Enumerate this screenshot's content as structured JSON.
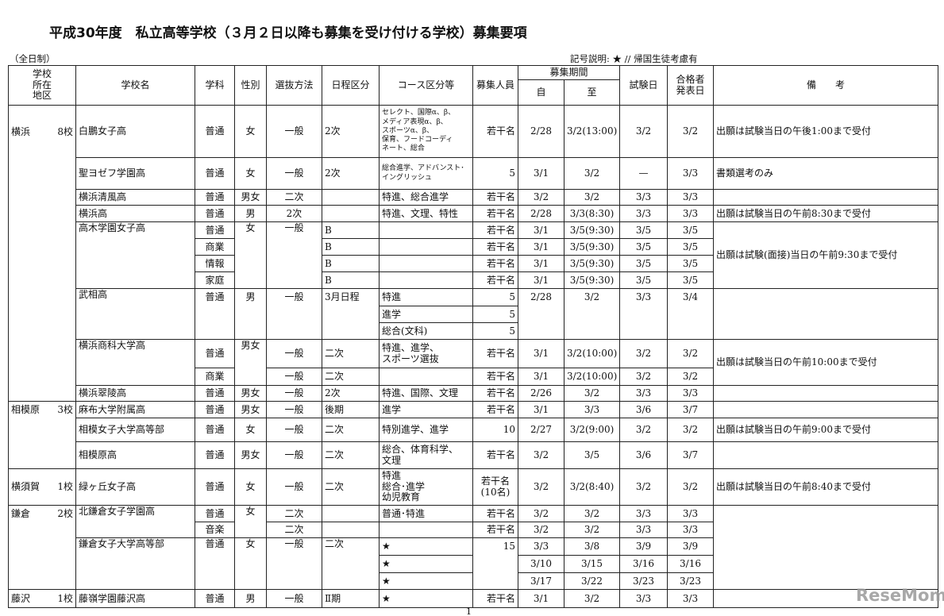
{
  "title": "平成30年度　私立高等学校（３月２日以降も募集を受け付ける学校）募集要項",
  "subtitle": "（全日制）",
  "legend": "記号説明:  ★ // 帰国生徒考慮有",
  "headers": {
    "region": "学校\n所在\n地区",
    "school": "学校名",
    "dept": "学科",
    "gender": "性別",
    "method": "選抜方法",
    "schedule": "日程区分",
    "course": "コース区分等",
    "capacity": "募集人員",
    "period": "募集期間",
    "from": "自",
    "to": "至",
    "exam": "試験日",
    "announce": "合格者\n発表日",
    "note": "備　　考"
  },
  "regions": [
    {
      "name": "横浜",
      "count": "8校"
    },
    {
      "name": "相模原",
      "count": "3校"
    },
    {
      "name": "横須賀",
      "count": "1校"
    },
    {
      "name": "鎌倉",
      "count": "2校"
    },
    {
      "name": "藤沢",
      "count": "1校"
    }
  ],
  "rows": [
    {
      "school": "白鵬女子高",
      "dept": "普通",
      "gender": "女",
      "method": "一般",
      "schedule": "2次",
      "course": "セレクト、国際α、β、\nメディア表現α、β、\nスポーツα、β、\n保育、フードコーディ\nネート、総合",
      "capacity": "若干名",
      "from": "2/28",
      "to": "3/2(13:00)",
      "exam": "3/2",
      "announce": "3/2",
      "note": "出願は試験当日の午後1:00まで受付"
    },
    {
      "school": "聖ヨゼフ学園高",
      "dept": "普通",
      "gender": "女",
      "method": "一般",
      "schedule": "2次",
      "course": "総合進学、アドバンスト･\nイングリッシュ",
      "capacity": "5",
      "from": "3/1",
      "to": "3/2",
      "exam": "—",
      "announce": "3/3",
      "note": "書類選考のみ"
    },
    {
      "school": "横浜清風高",
      "dept": "普通",
      "gender": "男女",
      "method": "二次",
      "schedule": "",
      "course": "特進、総合進学",
      "capacity": "若干名",
      "from": "3/2",
      "to": "3/2",
      "exam": "3/3",
      "announce": "3/3",
      "note": ""
    },
    {
      "school": "横浜高",
      "dept": "普通",
      "gender": "男",
      "method": "2次",
      "schedule": "",
      "course": "特進、文理、特性",
      "capacity": "若干名",
      "from": "2/28",
      "to": "3/3(8:30)",
      "exam": "3/3",
      "announce": "3/3",
      "note": "出願は試験当日の午前8:30まで受付"
    },
    {
      "school": "高木学園女子高",
      "dept": "普通",
      "gender": "女",
      "method": "一般",
      "schedule": "B",
      "course": "",
      "capacity": "若干名",
      "from": "3/1",
      "to": "3/5(9:30)",
      "exam": "3/5",
      "announce": "3/5",
      "note": "出願は試験(面接)当日の午前9:30まで受付"
    },
    {
      "dept": "商業",
      "schedule": "B",
      "course": "",
      "capacity": "若干名",
      "from": "3/1",
      "to": "3/5(9:30)",
      "exam": "3/5",
      "announce": "3/5"
    },
    {
      "dept": "情報",
      "schedule": "B",
      "course": "",
      "capacity": "若干名",
      "from": "3/1",
      "to": "3/5(9:30)",
      "exam": "3/5",
      "announce": "3/5"
    },
    {
      "dept": "家庭",
      "schedule": "B",
      "course": "",
      "capacity": "若干名",
      "from": "3/1",
      "to": "3/5(9:30)",
      "exam": "3/5",
      "announce": "3/5"
    },
    {
      "school": "武相高",
      "dept": "普通",
      "gender": "男",
      "method": "一般",
      "schedule": "3月日程",
      "course": "特進",
      "capacity": "5",
      "from": "2/28",
      "to": "3/2",
      "exam": "3/3",
      "announce": "3/4",
      "note": ""
    },
    {
      "course": "進学",
      "capacity": "5"
    },
    {
      "course": "総合(文科)",
      "capacity": "5"
    },
    {
      "school": "横浜商科大学高",
      "dept": "普通",
      "gender": "男女",
      "method": "一般",
      "schedule": "二次",
      "course": "特進、進学、\nスポーツ選抜",
      "capacity": "若干名",
      "from": "3/1",
      "to": "3/2(10:00)",
      "exam": "3/2",
      "announce": "3/2",
      "note": "出願は試験当日の午前10:00まで受付"
    },
    {
      "dept": "商業",
      "method": "一般",
      "schedule": "二次",
      "course": "",
      "capacity": "若干名",
      "from": "3/1",
      "to": "3/2(10:00)",
      "exam": "3/2",
      "announce": "3/2"
    },
    {
      "school": "横浜翠陵高",
      "dept": "普通",
      "gender": "男女",
      "method": "一般",
      "schedule": "2次",
      "course": "特進、国際、文理",
      "capacity": "若干名",
      "from": "2/26",
      "to": "3/2",
      "exam": "3/3",
      "announce": "3/3",
      "note": ""
    },
    {
      "school": "麻布大学附属高",
      "dept": "普通",
      "gender": "男女",
      "method": "一般",
      "schedule": "後期",
      "course": "進学",
      "capacity": "若干名",
      "from": "3/1",
      "to": "3/3",
      "exam": "3/6",
      "announce": "3/7",
      "note": ""
    },
    {
      "school": "相模女子大学高等部",
      "dept": "普通",
      "gender": "女",
      "method": "一般",
      "schedule": "二次",
      "course": "特別進学、進学",
      "capacity": "10",
      "from": "2/27",
      "to": "3/2(9:00)",
      "exam": "3/2",
      "announce": "3/2",
      "note": "出願は試験当日の午前9:00まで受付"
    },
    {
      "school": "相模原高",
      "dept": "普通",
      "gender": "男女",
      "method": "一般",
      "schedule": "二次",
      "course": "総合、体育科学、\n文理",
      "capacity": "若干名",
      "from": "3/2",
      "to": "3/5",
      "exam": "3/6",
      "announce": "3/7",
      "note": ""
    },
    {
      "school": "緑ヶ丘女子高",
      "dept": "普通",
      "gender": "女",
      "method": "一般",
      "schedule": "二次",
      "course": "特進\n総合･進学\n幼児教育",
      "capacity": "若干名\n(10名)",
      "from": "3/2",
      "to": "3/2(8:40)",
      "exam": "3/2",
      "announce": "3/2",
      "note": "出願は試験当日の午前8:40まで受付"
    },
    {
      "school": "北鎌倉女子学園高",
      "dept": "普通",
      "gender": "女",
      "method": "二次",
      "schedule": "",
      "course": "普通･特進",
      "capacity": "若干名",
      "from": "3/2",
      "to": "3/2",
      "exam": "3/3",
      "announce": "3/3",
      "note": ""
    },
    {
      "dept": "音楽",
      "method": "二次",
      "schedule": "",
      "course": "",
      "capacity": "若干名",
      "from": "3/2",
      "to": "3/2",
      "exam": "3/3",
      "announce": "3/3"
    },
    {
      "school": "鎌倉女子大学高等部",
      "dept": "普通",
      "gender": "女",
      "method": "一般",
      "schedule": "二次",
      "course": "★",
      "capacity": "15",
      "from": "3/3",
      "to": "3/8",
      "exam": "3/9",
      "announce": "3/9"
    },
    {
      "course": "★",
      "from": "3/10",
      "to": "3/15",
      "exam": "3/16",
      "announce": "3/16"
    },
    {
      "course": "★",
      "from": "3/17",
      "to": "3/22",
      "exam": "3/23",
      "announce": "3/23"
    },
    {
      "school": "藤嶺学園藤沢高",
      "dept": "普通",
      "gender": "男",
      "method": "一般",
      "schedule": "Ⅱ期",
      "course": "★",
      "capacity": "若干名",
      "from": "3/1",
      "to": "3/2",
      "exam": "3/3",
      "announce": "3/3",
      "note": ""
    }
  ],
  "page_number": "1",
  "watermark": "ReseMom"
}
